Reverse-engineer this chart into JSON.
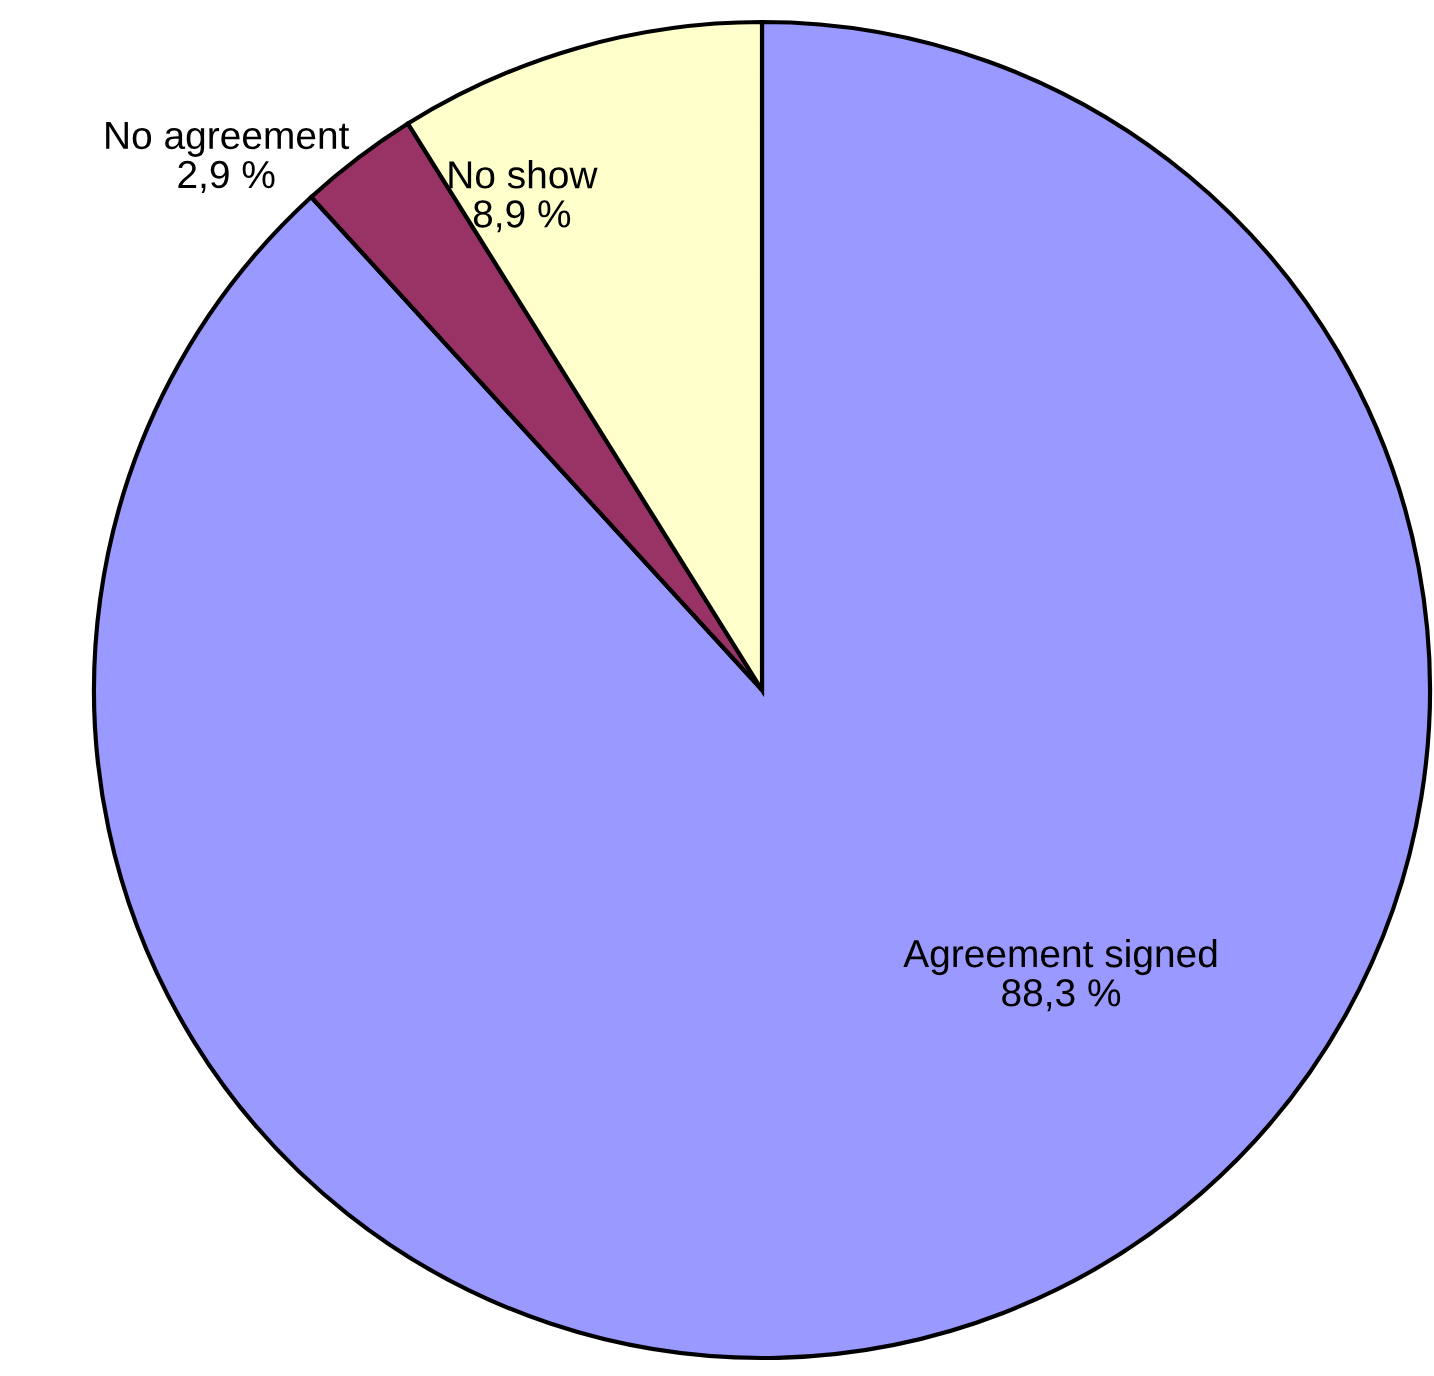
{
  "chart_data": {
    "type": "pie",
    "categories": [
      "Agreement signed",
      "No agreement",
      "No show"
    ],
    "values": [
      88.3,
      2.9,
      8.9
    ],
    "value_labels": [
      "88,3 %",
      "2,9 %",
      "8,9 %"
    ],
    "colors": [
      "#9999ff",
      "#993366",
      "#ffffcc"
    ]
  }
}
